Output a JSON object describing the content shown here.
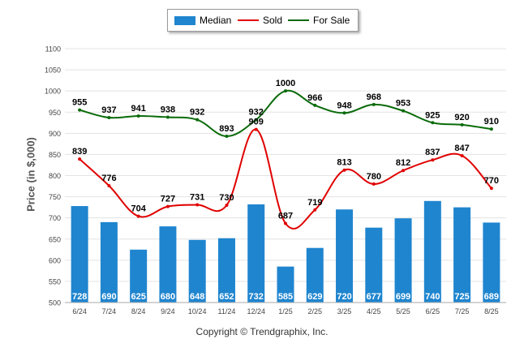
{
  "chart_data": {
    "type": "bar",
    "categories": [
      "6/24",
      "7/24",
      "8/24",
      "9/24",
      "10/24",
      "11/24",
      "12/24",
      "1/25",
      "2/25",
      "3/25",
      "4/25",
      "5/25",
      "6/25",
      "7/25",
      "8/25"
    ],
    "ylabel": "Price (in $,000)",
    "ylim": [
      500,
      1100
    ],
    "yticks": [
      500,
      550,
      600,
      650,
      700,
      750,
      800,
      850,
      900,
      950,
      1000,
      1050,
      1100
    ],
    "grid": true,
    "legend_placement": "top-center",
    "series": [
      {
        "name": "Median",
        "kind": "bar",
        "color": "#1f85cf",
        "values": [
          728,
          690,
          625,
          680,
          648,
          652,
          732,
          585,
          629,
          720,
          677,
          699,
          740,
          725,
          689
        ]
      },
      {
        "name": "Sold",
        "kind": "line",
        "color": "#e00000",
        "values": [
          839,
          776,
          704,
          727,
          731,
          730,
          909,
          687,
          719,
          813,
          780,
          812,
          837,
          847,
          770
        ]
      },
      {
        "name": "For Sale",
        "kind": "line",
        "color": "#0a6b0a",
        "values": [
          955,
          937,
          941,
          938,
          932,
          893,
          932,
          1000,
          966,
          948,
          968,
          953,
          925,
          920,
          910
        ]
      }
    ]
  },
  "legend": {
    "median": "Median",
    "sold": "Sold",
    "for_sale": "For Sale"
  },
  "footer": {
    "copyright": "Copyright © Trendgraphix, Inc."
  }
}
